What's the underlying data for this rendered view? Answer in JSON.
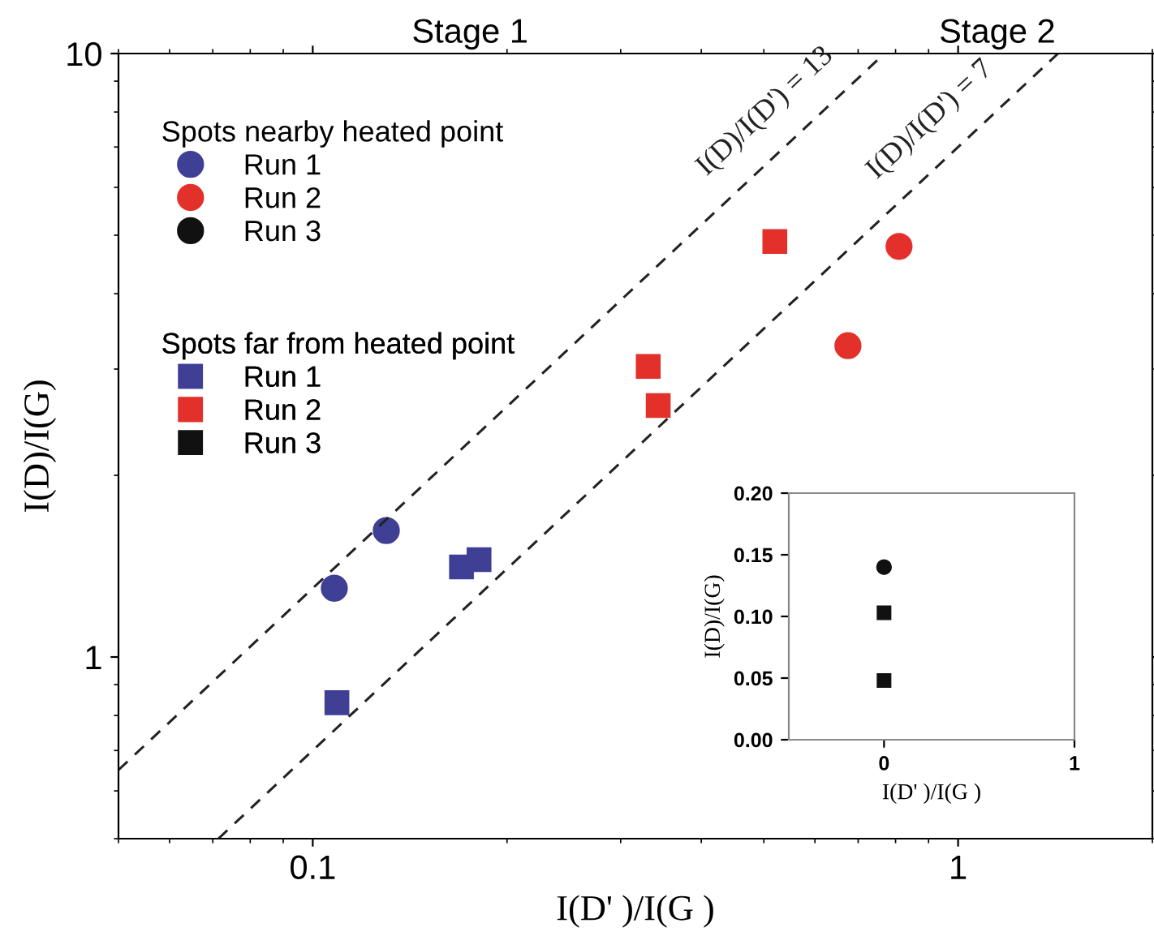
{
  "chart_data": [
    {
      "type": "scatter",
      "xlabel": "I(D' )/I(G )",
      "ylabel": "I(D)/I(G)",
      "log": "xy",
      "xlim": [
        0.05,
        2
      ],
      "ylim": [
        0.5,
        10
      ],
      "xticks": [
        0.1,
        1
      ],
      "yticks": [
        1,
        10
      ],
      "grid": false,
      "legend": "top left",
      "annotations": [
        "Stage 1",
        "Stage 2",
        "Spots nearby heated point",
        "Spots far from heated point"
      ],
      "series": [
        {
          "name": "Run 1",
          "color": "#3f3f96",
          "marker": "circle",
          "x": [
            0.108,
            0.13
          ],
          "values": [
            1.3,
            1.62
          ]
        },
        {
          "name": "Run 2",
          "color": "#e3302b",
          "marker": "circle",
          "x": [
            0.81,
            0.675
          ],
          "values": [
            4.79,
            3.28
          ]
        },
        {
          "name": "Run 1",
          "color": "#3f3f96",
          "marker": "square",
          "x": [
            0.109,
            0.17,
            0.181
          ],
          "values": [
            0.84,
            1.41,
            1.45
          ]
        },
        {
          "name": "Run 2",
          "color": "#e3302b",
          "marker": "square",
          "x": [
            0.52,
            0.331,
            0.343
          ],
          "values": [
            4.88,
            3.03,
            2.61
          ]
        },
        {
          "name": "I(D)/I(D') = 13",
          "type": "line",
          "color": "#222222",
          "line_style": "dashed",
          "marker": "none",
          "x": [
            0.05,
            0.769
          ],
          "values": [
            0.65,
            10
          ]
        },
        {
          "name": "I(D)/I(D') = 7",
          "type": "line",
          "color": "#222222",
          "line_style": "dashed",
          "marker": "none",
          "x": [
            0.0714,
            1.4286
          ],
          "values": [
            0.5,
            10
          ]
        }
      ]
    },
    {
      "type": "scatter",
      "xlabel": "I(D' )/I(G )",
      "ylabel": "I(D)/I(G)",
      "xlim": [
        -0.5,
        1
      ],
      "ylim": [
        0,
        0.2
      ],
      "xticks": [
        0,
        1
      ],
      "yticks": [
        {
          "value": 0,
          "label": "0.00"
        },
        {
          "value": 0.05,
          "label": "0.05"
        },
        {
          "value": 0.1,
          "label": "0.10"
        },
        {
          "value": 0.15,
          "label": "0.15"
        },
        {
          "value": 0.2,
          "label": "0.20"
        }
      ],
      "grid": false,
      "series": [
        {
          "name": "Run 3",
          "color": "#111111",
          "marker": "circle",
          "x": [
            0
          ],
          "values": [
            0.14
          ]
        },
        {
          "name": "Run 3",
          "color": "#111111",
          "marker": "square",
          "x": [
            0,
            0
          ],
          "values": [
            0.103,
            0.048
          ]
        }
      ]
    }
  ]
}
